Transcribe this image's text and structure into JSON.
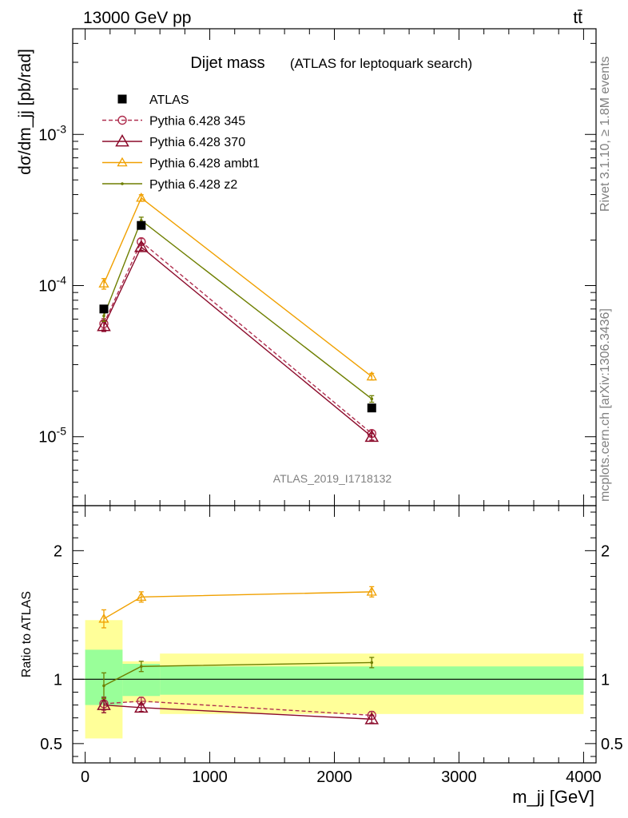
{
  "header": {
    "left": "13000 GeV pp",
    "right": "tt̄"
  },
  "side": {
    "rivet": "Rivet 3.1.10, ≥ 1.8M events",
    "mcplots": "mcplots.cern.ch [arXiv:1306.3436]"
  },
  "main": {
    "title": "Dijet mass",
    "subtitle": "(ATLAS for leptoquark search)",
    "analysis_id": "ATLAS_2019_I1718132"
  },
  "colors": {
    "data": "#000000",
    "p345": "#b03050",
    "p370": "#8b0a2a",
    "ambt1": "#f0a000",
    "z2": "#6e7f00",
    "band_inner": "#99ff99",
    "band_outer": "#ffff99"
  },
  "chart_data": [
    {
      "type": "line",
      "ylabel": "dσ/dm_jj [pb/rad]",
      "xlabel": "",
      "yscale": "log",
      "ylim": [
        3.5e-06,
        0.005
      ],
      "xlim": [
        -100,
        4100
      ],
      "yticks": [
        {
          "value": 1e-05,
          "label": "10^-5"
        },
        {
          "value": 0.0001,
          "label": "10^-4"
        },
        {
          "value": 0.001,
          "label": "10^-3"
        }
      ],
      "legend_position": "top-left",
      "data": {
        "name": "ATLAS",
        "x": [
          150,
          450,
          2300
        ],
        "y": [
          7e-05,
          0.00025,
          1.55e-05
        ]
      },
      "series": [
        {
          "name": "Pythia 6.428 345",
          "key": "p345",
          "marker": "circle",
          "dashed": true,
          "x": [
            150,
            450,
            2300
          ],
          "y": [
            5.6e-05,
            0.000195,
            1.05e-05
          ],
          "err": [
            0.08,
            0.05,
            0.05
          ]
        },
        {
          "name": "Pythia 6.428 370",
          "key": "p370",
          "marker": "triangle",
          "dashed": false,
          "x": [
            150,
            450,
            2300
          ],
          "y": [
            5.4e-05,
            0.00018,
            1e-05
          ],
          "err": [
            0.08,
            0.05,
            0.05
          ]
        },
        {
          "name": "Pythia 6.428 ambt1",
          "key": "ambt1",
          "marker": "triangle-small",
          "dashed": false,
          "x": [
            150,
            450,
            2300
          ],
          "y": [
            0.000103,
            0.00038,
            2.5e-05
          ],
          "err": [
            0.08,
            0.05,
            0.05
          ]
        },
        {
          "name": "Pythia 6.428 z2",
          "key": "z2",
          "marker": "dot",
          "dashed": false,
          "x": [
            150,
            450,
            2300
          ],
          "y": [
            6.3e-05,
            0.00027,
            1.78e-05
          ],
          "err": [
            0.08,
            0.05,
            0.05
          ]
        }
      ]
    },
    {
      "type": "line",
      "ylabel": "Ratio to ATLAS",
      "xlabel": "m_jj [GeV]",
      "ylim": [
        0.35,
        2.35
      ],
      "xlim": [
        -100,
        4100
      ],
      "yticks": [
        {
          "value": 0.5,
          "label": "0.5"
        },
        {
          "value": 1,
          "label": "1"
        },
        {
          "value": 2,
          "label": "2"
        }
      ],
      "xticks": [
        {
          "value": 0,
          "label": "0"
        },
        {
          "value": 1000,
          "label": "1000"
        },
        {
          "value": 2000,
          "label": "2000"
        },
        {
          "value": 3000,
          "label": "3000"
        },
        {
          "value": 4000,
          "label": "4000"
        }
      ],
      "bands": [
        {
          "x0": 0,
          "x1": 300,
          "inner": [
            0.8,
            1.23
          ],
          "outer": [
            0.54,
            1.46
          ]
        },
        {
          "x0": 300,
          "x1": 600,
          "inner": [
            0.87,
            1.12
          ],
          "outer": [
            0.82,
            1.14
          ]
        },
        {
          "x0": 600,
          "x1": 4000,
          "inner": [
            0.88,
            1.1
          ],
          "outer": [
            0.73,
            1.2
          ]
        }
      ],
      "series": [
        {
          "name": "Pythia 6.428 345",
          "key": "p345",
          "marker": "circle",
          "dashed": true,
          "x": [
            150,
            450,
            2300
          ],
          "y": [
            0.81,
            0.83,
            0.72
          ],
          "err": [
            0.05,
            0.03,
            0.03
          ]
        },
        {
          "name": "Pythia 6.428 370",
          "key": "p370",
          "marker": "triangle",
          "dashed": false,
          "x": [
            150,
            450,
            2300
          ],
          "y": [
            0.8,
            0.78,
            0.69
          ],
          "err": [
            0.06,
            0.03,
            0.03
          ]
        },
        {
          "name": "Pythia 6.428 ambt1",
          "key": "ambt1",
          "marker": "triangle-small",
          "dashed": false,
          "x": [
            150,
            450,
            2300
          ],
          "y": [
            1.47,
            1.64,
            1.68
          ],
          "err": [
            0.07,
            0.04,
            0.04
          ]
        },
        {
          "name": "Pythia 6.428 z2",
          "key": "z2",
          "marker": "dot",
          "dashed": false,
          "x": [
            150,
            450,
            2300
          ],
          "y": [
            0.95,
            1.1,
            1.13
          ],
          "err": [
            0.1,
            0.04,
            0.04
          ]
        }
      ]
    }
  ]
}
